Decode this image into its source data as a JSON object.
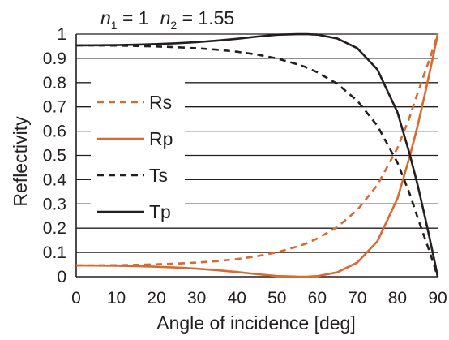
{
  "chart_data": {
    "type": "line",
    "title": {
      "n1_symbol": "n",
      "n1_sub": "1",
      "n1_value": " = 1",
      "n2_symbol": "n",
      "n2_sub": "2",
      "n2_value": " = 1.55"
    },
    "xlabel": "Angle of incidence [deg]",
    "ylabel": "Reflectivity",
    "xlim": [
      0,
      90
    ],
    "ylim": [
      0,
      1
    ],
    "x_ticks": [
      "0",
      "10",
      "20",
      "30",
      "40",
      "50",
      "60",
      "70",
      "80",
      "90"
    ],
    "y_ticks": [
      "0",
      "0.1",
      "0.2",
      "0.3",
      "0.4",
      "0.5",
      "0.6",
      "0.7",
      "0.8",
      "0.9",
      "1"
    ],
    "grid": "horizontal",
    "legend_position": "left",
    "colors": {
      "reflect": "#d9692e",
      "transmit": "#231f20"
    },
    "x": [
      0,
      5,
      10,
      15,
      20,
      25,
      30,
      35,
      40,
      45,
      50,
      55,
      57.17,
      60,
      65,
      70,
      75,
      80,
      83,
      85,
      87,
      88,
      89,
      89.5,
      90
    ],
    "series": [
      {
        "name": "Rs",
        "style": "dashed",
        "color": "#d9692e",
        "values": [
          0.0465,
          0.0468,
          0.0476,
          0.0491,
          0.0512,
          0.0541,
          0.0584,
          0.0643,
          0.0726,
          0.0843,
          0.1007,
          0.124,
          0.136,
          0.1571,
          0.2049,
          0.2748,
          0.378,
          0.5305,
          0.6565,
          0.7558,
          0.8505,
          0.8968,
          0.948,
          0.9738,
          1.0
        ]
      },
      {
        "name": "Rp",
        "style": "solid",
        "color": "#d9692e",
        "values": [
          0.0465,
          0.0462,
          0.0453,
          0.0437,
          0.0413,
          0.0378,
          0.0331,
          0.0271,
          0.0194,
          0.0104,
          0.0028,
          0.0001,
          0.0,
          0.0022,
          0.0182,
          0.0584,
          0.1459,
          0.3226,
          0.4925,
          0.6208,
          0.7656,
          0.8418,
          0.9181,
          0.9577,
          1.0
        ]
      },
      {
        "name": "Ts",
        "style": "dashed",
        "color": "#231f20",
        "values": [
          0.9535,
          0.9532,
          0.9524,
          0.9509,
          0.9488,
          0.9459,
          0.9416,
          0.9357,
          0.9274,
          0.9157,
          0.8993,
          0.876,
          0.864,
          0.8429,
          0.7951,
          0.7252,
          0.622,
          0.4695,
          0.3435,
          0.2442,
          0.1495,
          0.1032,
          0.052,
          0.0262,
          0.0
        ]
      },
      {
        "name": "Tp",
        "style": "solid",
        "color": "#231f20",
        "values": [
          0.9535,
          0.9538,
          0.9547,
          0.9563,
          0.9587,
          0.9622,
          0.9669,
          0.9729,
          0.9806,
          0.9896,
          0.9972,
          0.9999,
          1.0,
          0.9978,
          0.9818,
          0.9416,
          0.8541,
          0.6774,
          0.5075,
          0.3792,
          0.2344,
          0.1582,
          0.0819,
          0.0423,
          0.0
        ]
      }
    ]
  }
}
